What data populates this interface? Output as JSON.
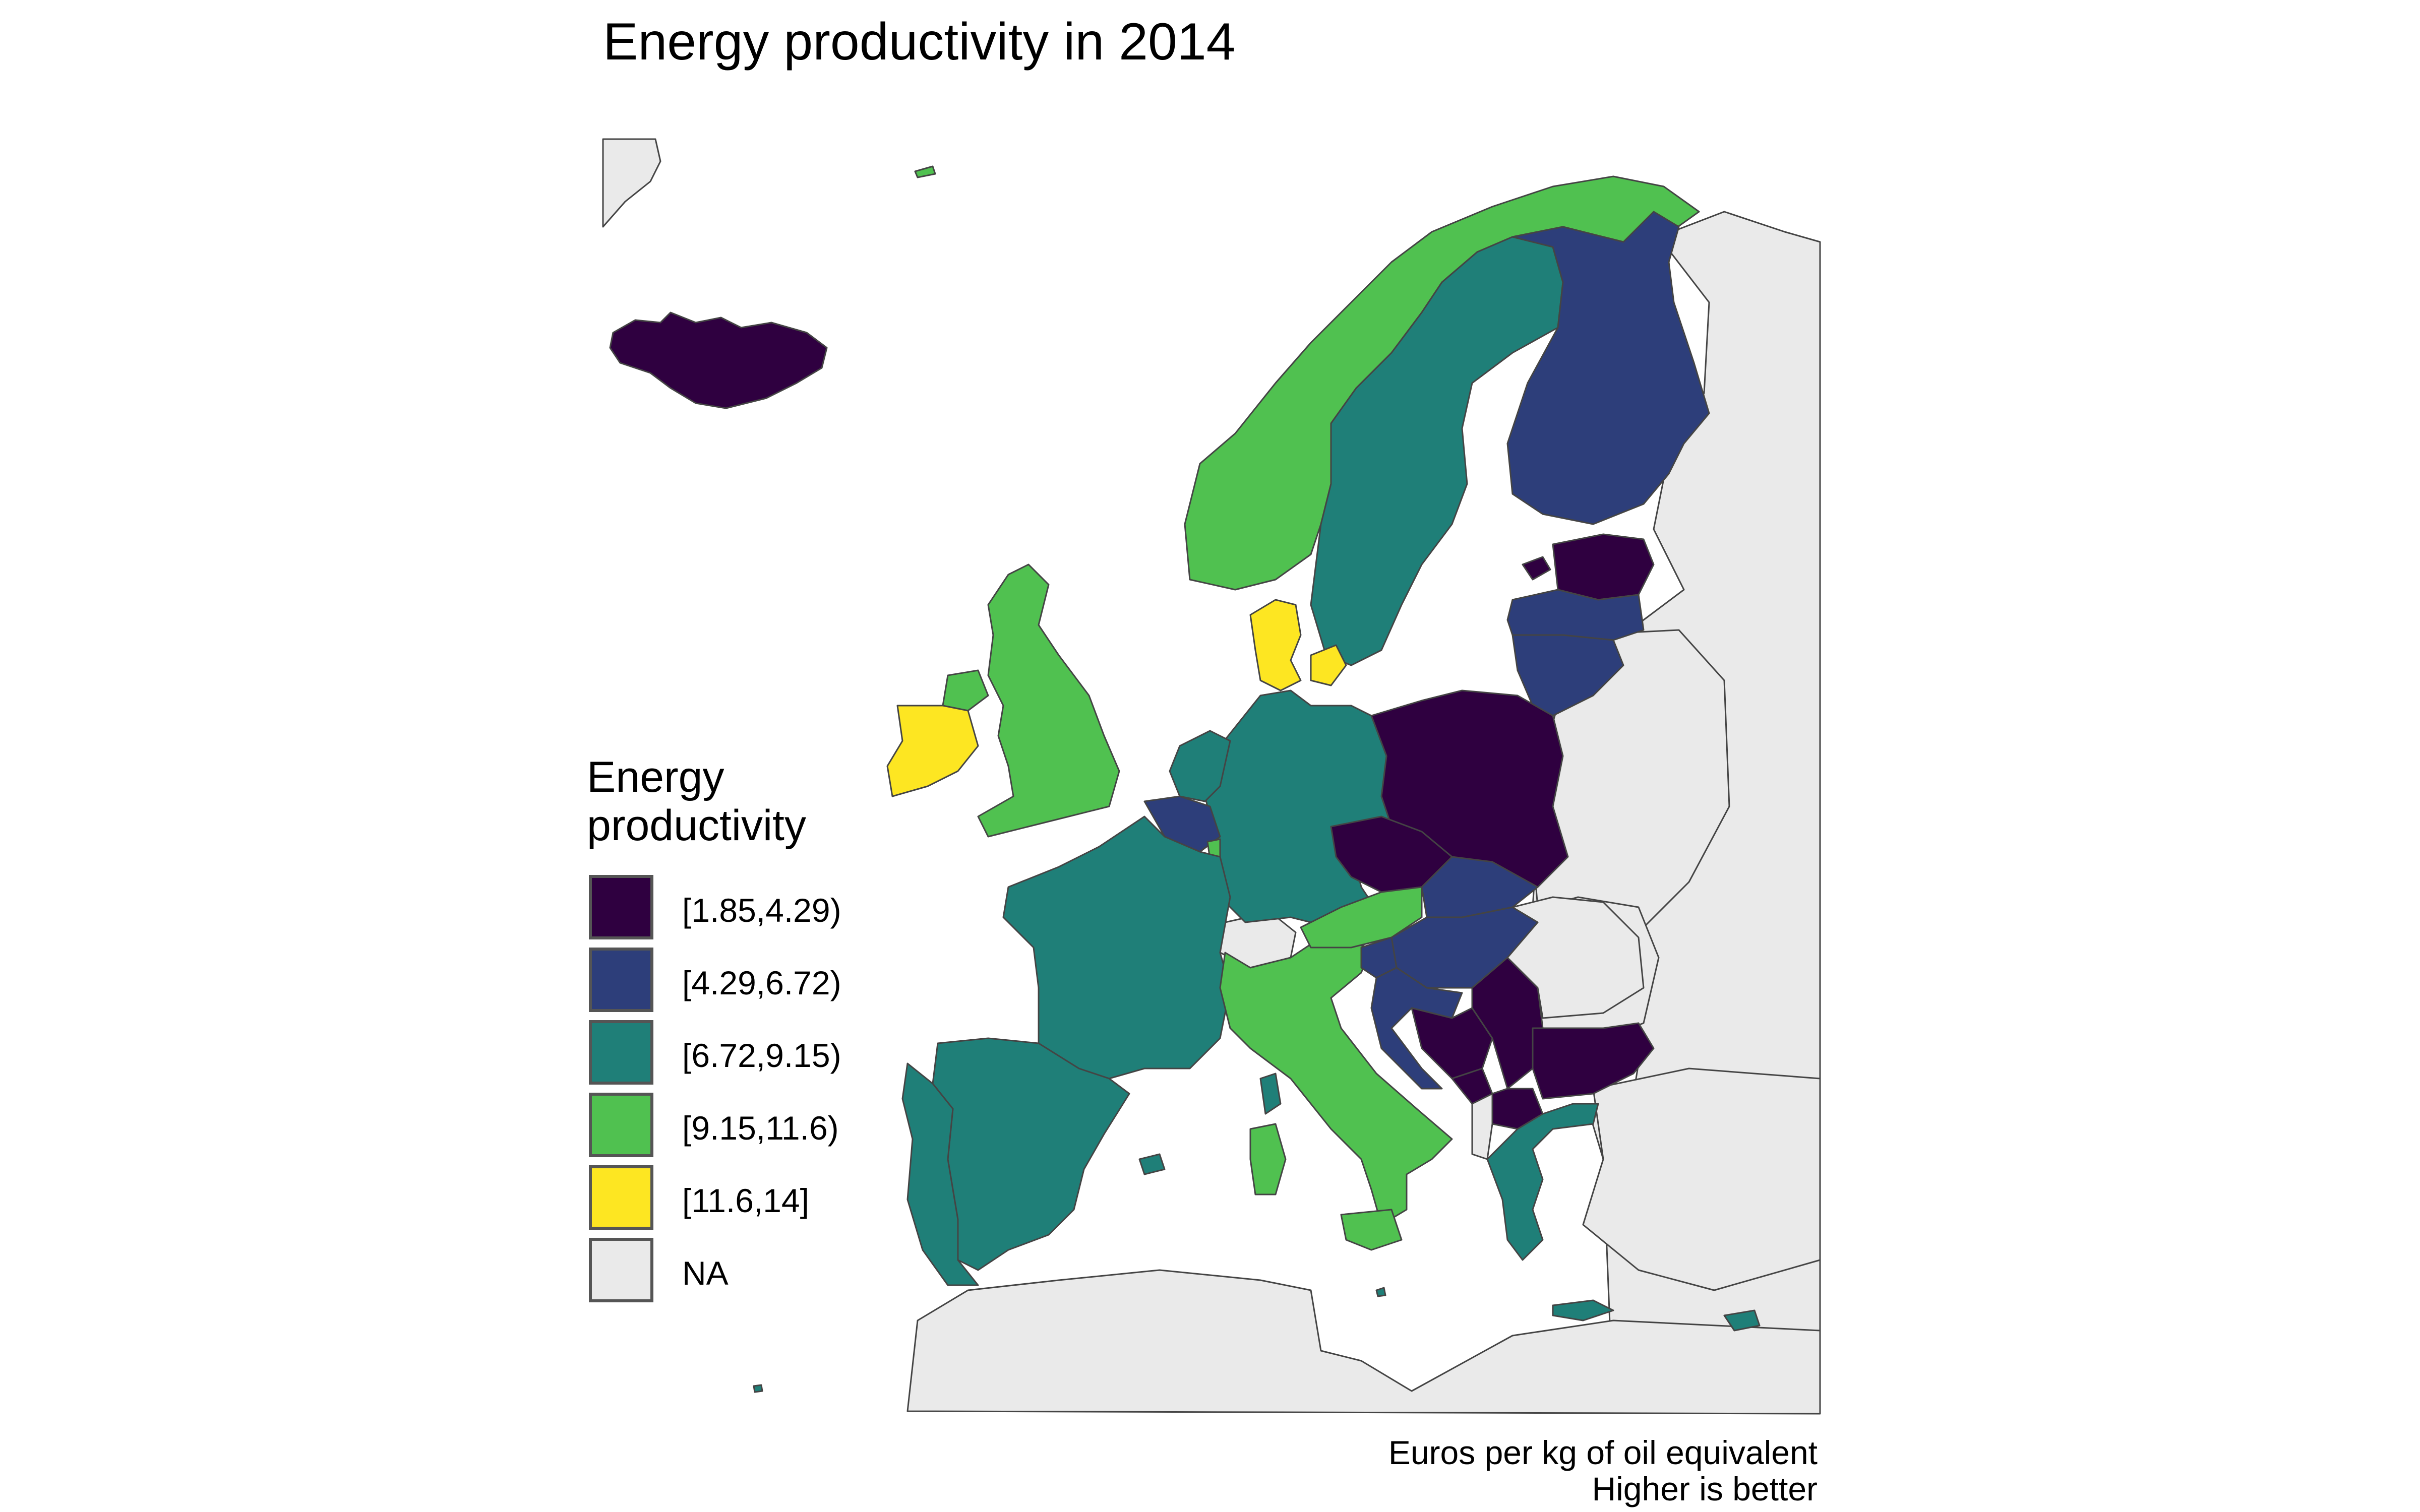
{
  "title": "Energy productivity in 2014",
  "legend": {
    "title_line1": "Energy",
    "title_line2": "productivity",
    "items": [
      {
        "label": "[1.85,4.29)",
        "color": "#2f0040"
      },
      {
        "label": "[4.29,6.72)",
        "color": "#2d3e7a"
      },
      {
        "label": "[6.72,9.15)",
        "color": "#1f7f78"
      },
      {
        "label": "[9.15,11.6)",
        "color": "#50c150"
      },
      {
        "label": "[11.6,14]",
        "color": "#fde622"
      },
      {
        "label": "NA",
        "color": "#eaeaea"
      }
    ]
  },
  "caption": {
    "line1": "Euros per kg of oil equivalent",
    "line2": "Higher is better"
  },
  "colors": {
    "c1": "#2f0040",
    "c2": "#2d3e7a",
    "c3": "#1f7f78",
    "c4": "#50c150",
    "c5": "#fde622",
    "na": "#eaeaea",
    "border": "#444444"
  }
}
